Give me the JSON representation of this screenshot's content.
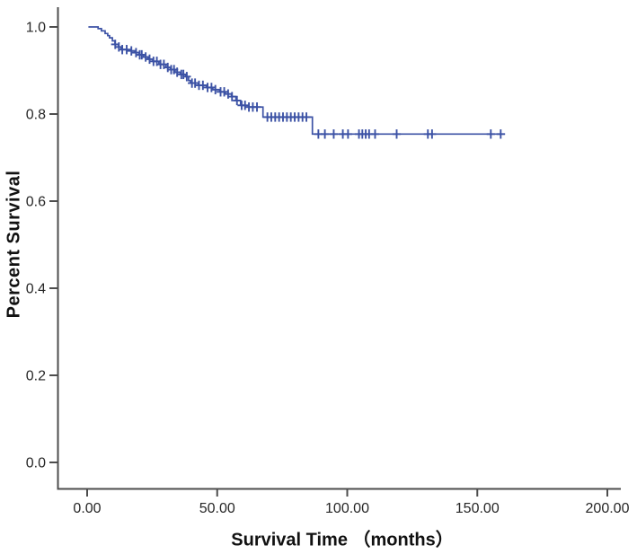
{
  "figure": {
    "background": "#ffffff",
    "curve_color": "#3c52a5",
    "axis_color": "#4d4d4d",
    "tick_text_color": "#262626",
    "title_text_color": "#111111"
  },
  "chart_data": {
    "type": "line",
    "subtype": "kaplan-meier-step-function",
    "title": "",
    "xlabel": "Survival Time （months）",
    "ylabel": "Percent Survival",
    "xlim": [
      0,
      200
    ],
    "ylim": [
      0.0,
      1.0
    ],
    "grid": false,
    "legend_position": "none",
    "x_ticks": [
      0,
      50,
      100,
      150,
      200
    ],
    "x_tick_labels": [
      "0.00",
      "50.00",
      "100.00",
      "150.00",
      "200.00"
    ],
    "y_ticks": [
      0.0,
      0.2,
      0.4,
      0.6,
      0.8,
      1.0
    ],
    "y_tick_labels": [
      "0.0",
      "0.2",
      "0.4",
      "0.6",
      "0.8",
      "1.0"
    ],
    "series": [
      {
        "name": "survival-curve",
        "color": "#3c52a5",
        "steps": [
          [
            0.5,
            1.0
          ],
          [
            4.2,
            0.996
          ],
          [
            5.5,
            0.991
          ],
          [
            6.9,
            0.985
          ],
          [
            7.9,
            0.98
          ],
          [
            8.6,
            0.975
          ],
          [
            9.7,
            0.968
          ],
          [
            10.7,
            0.96
          ],
          [
            12.1,
            0.954
          ],
          [
            13.1,
            0.948
          ],
          [
            15.5,
            0.945
          ],
          [
            18.3,
            0.941
          ],
          [
            20.0,
            0.936
          ],
          [
            21.7,
            0.931
          ],
          [
            23.4,
            0.926
          ],
          [
            25.2,
            0.921
          ],
          [
            27.6,
            0.914
          ],
          [
            30.3,
            0.907
          ],
          [
            32.1,
            0.902
          ],
          [
            33.8,
            0.896
          ],
          [
            35.9,
            0.891
          ],
          [
            37.9,
            0.886
          ],
          [
            39.0,
            0.877
          ],
          [
            39.7,
            0.871
          ],
          [
            42.8,
            0.866
          ],
          [
            45.9,
            0.861
          ],
          [
            48.3,
            0.856
          ],
          [
            51.0,
            0.851
          ],
          [
            53.1,
            0.846
          ],
          [
            55.5,
            0.84
          ],
          [
            57.2,
            0.831
          ],
          [
            59.0,
            0.82
          ],
          [
            62.0,
            0.816
          ],
          [
            67.6,
            0.793
          ],
          [
            86.6,
            0.754
          ],
          [
            160.7,
            0.754
          ]
        ],
        "censor_times": [
          10.8,
          12.2,
          13.5,
          15.2,
          17.0,
          18.8,
          20.2,
          21.0,
          22.5,
          24.0,
          25.5,
          26.8,
          28.2,
          29.5,
          31.0,
          32.3,
          33.4,
          34.6,
          36.2,
          37.0,
          38.3,
          40.3,
          41.5,
          43.0,
          44.5,
          46.3,
          47.8,
          49.3,
          51.3,
          52.7,
          54.2,
          55.7,
          57.6,
          59.4,
          60.7,
          62.2,
          63.7,
          65.3,
          69.3,
          70.8,
          72.3,
          73.8,
          75.3,
          76.8,
          78.3,
          79.8,
          81.3,
          82.8,
          84.3,
          88.9,
          91.4,
          94.8,
          98.3,
          100.3,
          104.5,
          105.8,
          107.1,
          108.4,
          110.7,
          119.0,
          131.0,
          132.6,
          155.2,
          159.0
        ]
      }
    ]
  }
}
